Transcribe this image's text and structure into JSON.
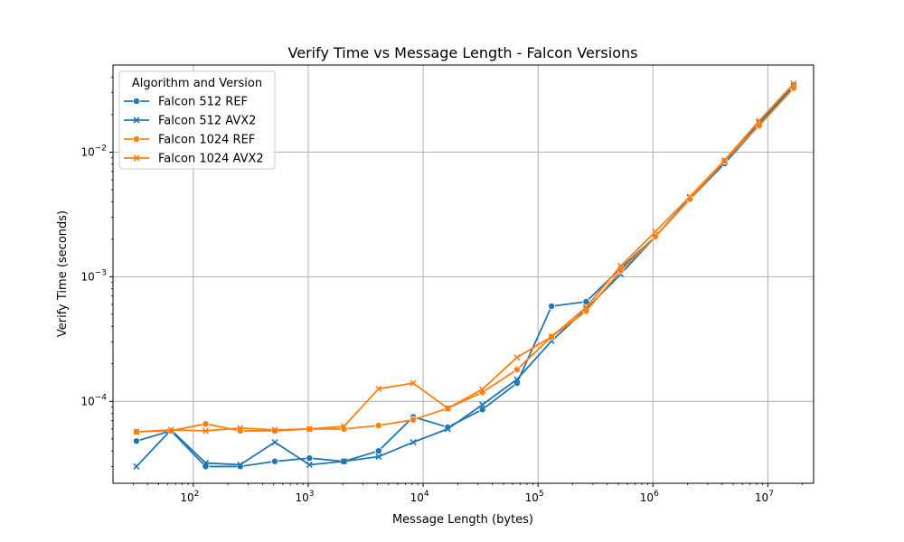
{
  "chart_data": {
    "type": "line",
    "title": "Verify Time vs Message Length - Falcon Versions",
    "xlabel": "Message Length (bytes)",
    "ylabel": "Verify Time (seconds)",
    "xscale": "log",
    "yscale": "log",
    "xlim": [
      20,
      25000000
    ],
    "ylim": [
      2.2e-05,
      0.05
    ],
    "x_ticks": [
      {
        "value": 100,
        "base": "10",
        "exp": "2"
      },
      {
        "value": 1000,
        "base": "10",
        "exp": "3"
      },
      {
        "value": 10000,
        "base": "10",
        "exp": "4"
      },
      {
        "value": 100000,
        "base": "10",
        "exp": "5"
      },
      {
        "value": 1000000,
        "base": "10",
        "exp": "6"
      },
      {
        "value": 10000000,
        "base": "10",
        "exp": "7"
      }
    ],
    "y_ticks": [
      {
        "value": 0.0001,
        "base": "10",
        "exp": "−4"
      },
      {
        "value": 0.001,
        "base": "10",
        "exp": "−3"
      },
      {
        "value": 0.01,
        "base": "10",
        "exp": "−2"
      }
    ],
    "grid": true,
    "legend": {
      "title": "Algorithm and Version",
      "placement": "top-left"
    },
    "x": [
      32,
      64,
      128,
      256,
      512,
      1024,
      2048,
      4096,
      8192,
      16384,
      32768,
      65536,
      131072,
      262144,
      524288,
      1048576,
      2097152,
      4194304,
      8388608,
      16777216
    ],
    "series": [
      {
        "name": "Falcon 512 REF",
        "color": "#1f77b4",
        "marker": "circle",
        "values": [
          4.8e-05,
          5.8e-05,
          3e-05,
          3e-05,
          3.3e-05,
          3.5e-05,
          3.3e-05,
          4e-05,
          7.5e-05,
          6.2e-05,
          8.6e-05,
          0.00014,
          0.00058,
          0.00063,
          0.00117,
          0.0021,
          0.0042,
          0.0081,
          0.0165,
          0.033
        ]
      },
      {
        "name": "Falcon 512 AVX2",
        "color": "#1f77b4",
        "marker": "x",
        "values": [
          3e-05,
          5.9e-05,
          3.2e-05,
          3.1e-05,
          4.7e-05,
          3.1e-05,
          3.3e-05,
          3.6e-05,
          4.7e-05,
          6e-05,
          9.4e-05,
          0.00015,
          0.000305,
          0.00055,
          0.00105,
          0.0021,
          0.0043,
          0.0084,
          0.0172,
          0.034
        ]
      },
      {
        "name": "Falcon 1024 REF",
        "color": "#ff7f0e",
        "marker": "circle",
        "values": [
          5.7e-05,
          5.8e-05,
          6.6e-05,
          5.8e-05,
          5.8e-05,
          6e-05,
          6e-05,
          6.4e-05,
          7.1e-05,
          8.8e-05,
          0.000118,
          0.00018,
          0.00033,
          0.00053,
          0.00112,
          0.0021,
          0.0042,
          0.0085,
          0.0163,
          0.0327
        ]
      },
      {
        "name": "Falcon 1024 AVX2",
        "color": "#ff7f0e",
        "marker": "x",
        "values": [
          5.7e-05,
          5.9e-05,
          5.8e-05,
          6.1e-05,
          5.9e-05,
          6e-05,
          6.3e-05,
          0.000126,
          0.00014,
          8.8e-05,
          0.000125,
          0.000225,
          0.00033,
          0.00057,
          0.00122,
          0.0023,
          0.0044,
          0.0086,
          0.0178,
          0.0355
        ]
      }
    ]
  }
}
